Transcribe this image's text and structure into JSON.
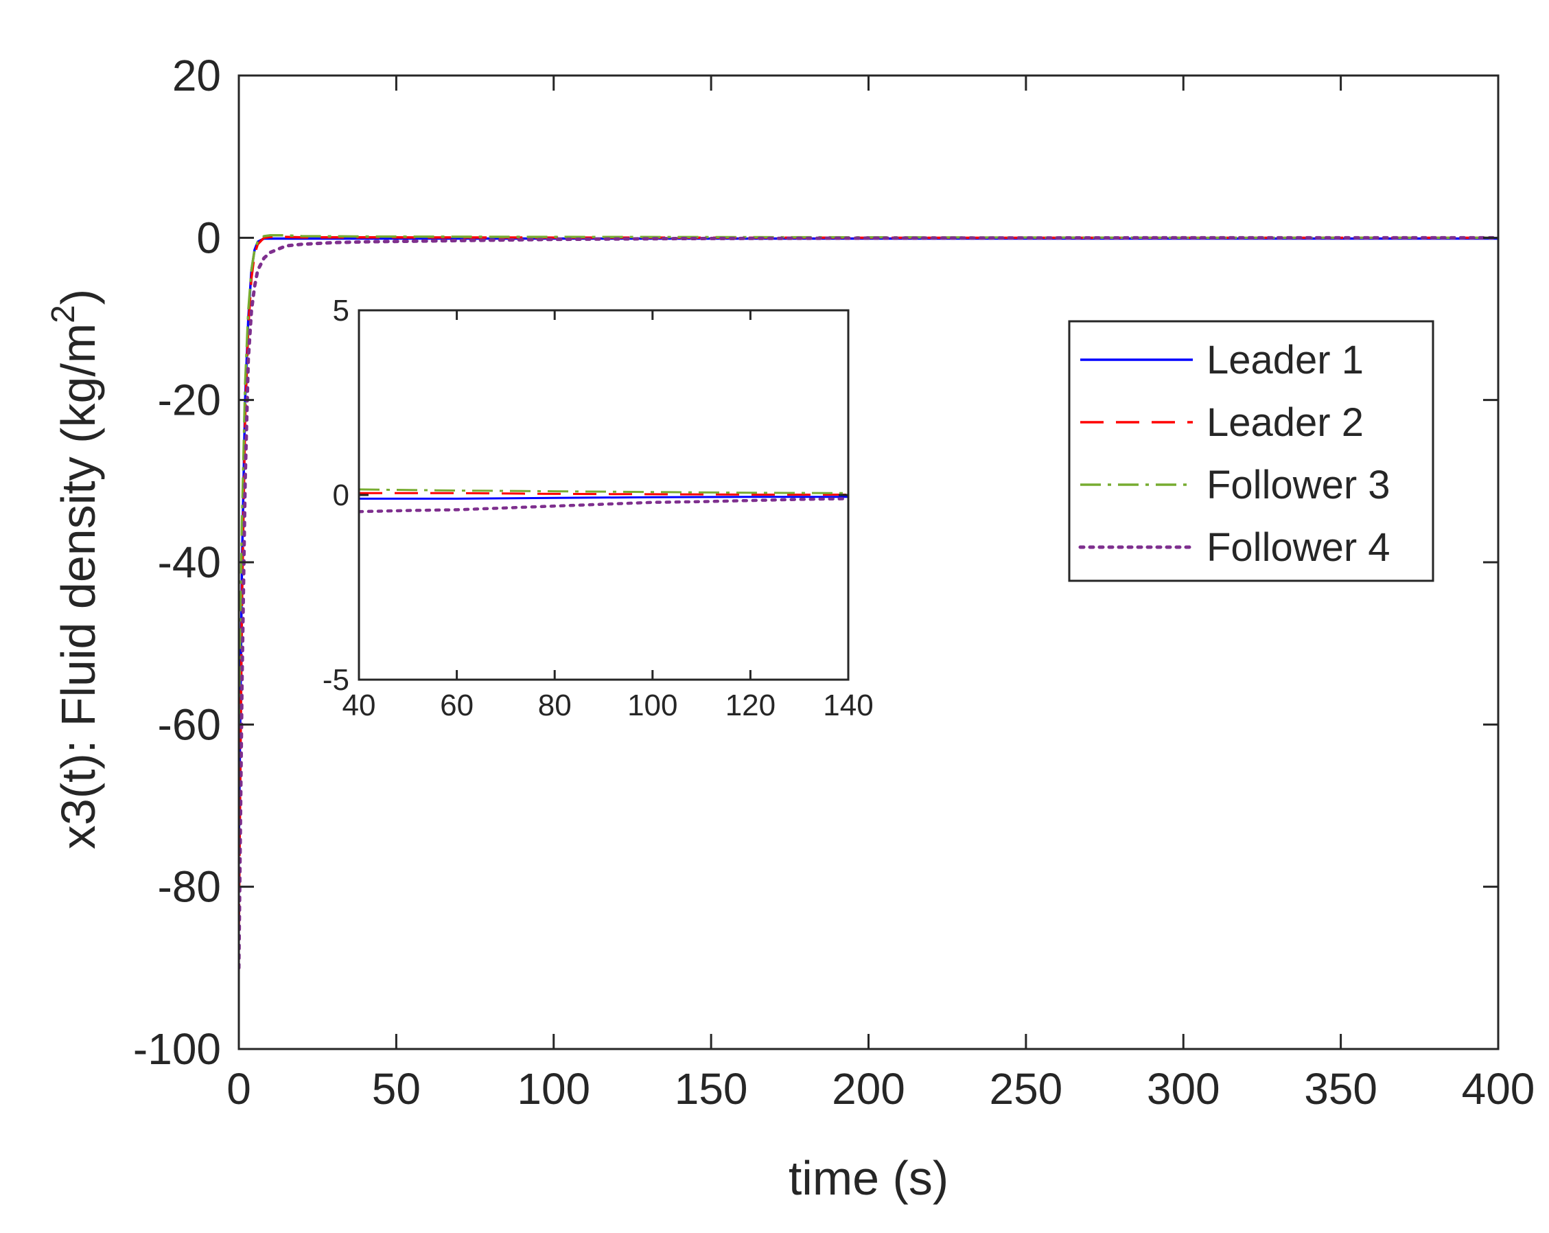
{
  "chart_data": [
    {
      "id": "main",
      "type": "line",
      "title": "",
      "xlabel": "time (s)",
      "ylabel_text": "x3(t): Fluid density (kg/m",
      "ylabel_superscript": "2",
      "ylabel_close": ")",
      "xlim": [
        0,
        400
      ],
      "ylim": [
        -100,
        20
      ],
      "xticks": [
        0,
        50,
        100,
        150,
        200,
        250,
        300,
        350,
        400
      ],
      "xtick_labels": [
        "0",
        "50",
        "100",
        "150",
        "200",
        "250",
        "300",
        "350",
        "400"
      ],
      "yticks": [
        -100,
        -80,
        -60,
        -40,
        -20,
        0,
        20
      ],
      "ytick_labels": [
        "-100",
        "-80",
        "-60",
        "-40",
        "-20",
        "0",
        "20"
      ],
      "grid": false,
      "legend_position": "upper-right",
      "series": [
        {
          "name": "Leader 1",
          "color": "#0000ff",
          "style": "solid",
          "x": [
            0,
            1,
            2,
            3,
            4,
            5,
            6,
            8,
            10,
            15,
            20,
            40,
            100,
            200,
            300,
            400
          ],
          "y": [
            -75,
            -40,
            -20,
            -10,
            -4,
            -1.5,
            -0.5,
            -0.1,
            -0.1,
            -0.1,
            -0.1,
            -0.1,
            -0.1,
            -0.1,
            -0.1,
            -0.1
          ]
        },
        {
          "name": "Leader 2",
          "color": "#ff0000",
          "style": "dashed",
          "x": [
            0,
            1,
            2,
            3,
            4,
            5,
            6,
            8,
            10,
            15,
            20,
            40,
            100,
            200,
            300,
            400
          ],
          "y": [
            -85,
            -45,
            -22,
            -11,
            -5,
            -2,
            -0.8,
            0,
            0.1,
            0.1,
            0.05,
            0.05,
            0.02,
            0,
            0,
            0
          ]
        },
        {
          "name": "Follower 3",
          "color": "#77ac30",
          "style": "dashdot",
          "x": [
            0,
            1,
            2,
            3,
            4,
            5,
            6,
            8,
            10,
            15,
            20,
            40,
            100,
            200,
            300,
            400
          ],
          "y": [
            -60,
            -35,
            -18,
            -9,
            -4,
            -1.5,
            -0.5,
            0.2,
            0.3,
            0.3,
            0.2,
            0.15,
            0.1,
            0.05,
            0,
            0
          ]
        },
        {
          "name": "Follower 4",
          "color": "#7e2f8e",
          "style": "dotted",
          "x": [
            0,
            1,
            2,
            3,
            4,
            5,
            6,
            8,
            10,
            15,
            20,
            30,
            40,
            60,
            80,
            100,
            140,
            200,
            300,
            400
          ],
          "y": [
            -90,
            -55,
            -30,
            -15,
            -9,
            -6,
            -4,
            -2.5,
            -1.8,
            -1,
            -0.8,
            -0.6,
            -0.5,
            -0.4,
            -0.3,
            -0.2,
            -0.1,
            -0.05,
            0,
            0
          ]
        }
      ]
    },
    {
      "id": "inset",
      "type": "line",
      "title": "",
      "xlabel": "",
      "ylabel": "",
      "xlim": [
        40,
        140
      ],
      "ylim": [
        -5,
        5
      ],
      "xticks": [
        40,
        60,
        80,
        100,
        120,
        140
      ],
      "xtick_labels": [
        "40",
        "60",
        "80",
        "100",
        "120",
        "140"
      ],
      "yticks": [
        -5,
        0,
        5
      ],
      "ytick_labels": [
        "-5",
        "0",
        "5"
      ],
      "grid": false,
      "series": [
        {
          "name": "Leader 1",
          "color": "#0000ff",
          "style": "solid",
          "x": [
            40,
            60,
            80,
            100,
            120,
            140
          ],
          "y": [
            -0.1,
            -0.1,
            -0.08,
            -0.06,
            -0.05,
            -0.05
          ]
        },
        {
          "name": "Leader 2",
          "color": "#ff0000",
          "style": "dashed",
          "x": [
            40,
            60,
            80,
            100,
            120,
            140
          ],
          "y": [
            0.05,
            0.05,
            0.03,
            0.02,
            0.01,
            0.01
          ]
        },
        {
          "name": "Follower 3",
          "color": "#77ac30",
          "style": "dashdot",
          "x": [
            40,
            60,
            80,
            100,
            120,
            140
          ],
          "y": [
            0.15,
            0.12,
            0.1,
            0.08,
            0.06,
            0.05
          ]
        },
        {
          "name": "Follower 4",
          "color": "#7e2f8e",
          "style": "dotted",
          "x": [
            40,
            50,
            60,
            70,
            80,
            90,
            100,
            110,
            120,
            130,
            140
          ],
          "y": [
            -0.45,
            -0.42,
            -0.4,
            -0.35,
            -0.3,
            -0.25,
            -0.2,
            -0.18,
            -0.15,
            -0.12,
            -0.1
          ]
        }
      ]
    }
  ]
}
